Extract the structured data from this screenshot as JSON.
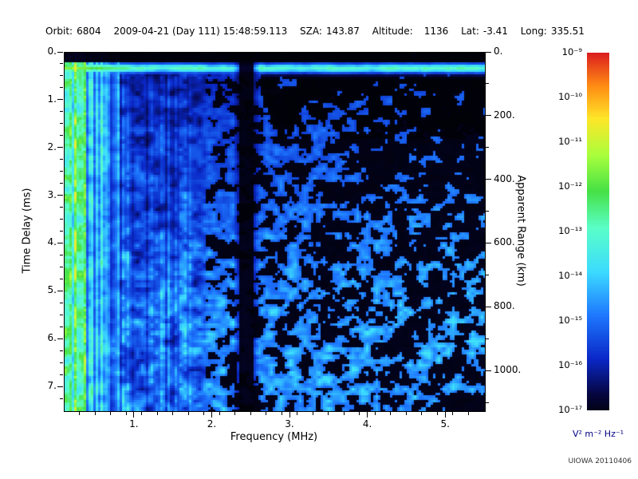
{
  "header": {
    "orbit_label": "Orbit:",
    "orbit_value": "6804",
    "datetime": "2009-04-21 (Day 111) 15:48:59.113",
    "sza_label": "SZA:",
    "sza_value": "143.87",
    "altitude_label": "Altitude:",
    "altitude_value": "1136",
    "lat_label": "Lat:",
    "lat_value": "-3.41",
    "long_label": "Long:",
    "long_value": "335.51"
  },
  "chart_data": {
    "type": "heatmap",
    "title": "",
    "xlabel": "Frequency (MHz)",
    "ylabel": "Time Delay (ms)",
    "y2label": "Apparent Range (km)",
    "xlim": [
      0.1,
      5.5
    ],
    "ylim": [
      0,
      7.5
    ],
    "y2lim": [
      0,
      1125
    ],
    "grid": false,
    "x_ticks": {
      "values": [
        1,
        2,
        3,
        4,
        5
      ],
      "labels": [
        "1.",
        "2.",
        "3.",
        "4.",
        "5."
      ]
    },
    "y_ticks": {
      "values": [
        0,
        1,
        2,
        3,
        4,
        5,
        6,
        7
      ],
      "labels": [
        "0.",
        "1.",
        "2.",
        "3.",
        "4.",
        "5.",
        "6.",
        "7."
      ]
    },
    "y2_ticks": {
      "values": [
        0,
        200,
        400,
        600,
        800,
        1000
      ],
      "labels": [
        "0.",
        "200.",
        "400.",
        "600.",
        "800.",
        "1000."
      ]
    },
    "x_minor_step": 0.2,
    "y_minor_step": 0.25,
    "y2_minor_step": 100,
    "colorbar": {
      "unit": "V² m⁻² Hz⁻¹",
      "max_exponent": -9,
      "min_exponent": -17,
      "tick_labels": [
        "10⁻⁹",
        "10⁻¹⁰",
        "10⁻¹¹",
        "10⁻¹²",
        "10⁻¹³",
        "10⁻¹⁴",
        "10⁻¹⁵",
        "10⁻¹⁶",
        "10⁻¹⁷"
      ],
      "stops": [
        [
          0.0,
          "#010108"
        ],
        [
          0.06,
          "#05053c"
        ],
        [
          0.16,
          "#0a28c8"
        ],
        [
          0.28,
          "#1e78ff"
        ],
        [
          0.4,
          "#3cdcff"
        ],
        [
          0.52,
          "#5affc8"
        ],
        [
          0.62,
          "#46e146"
        ],
        [
          0.72,
          "#aaff3c"
        ],
        [
          0.82,
          "#ffe628"
        ],
        [
          0.91,
          "#ff8c14"
        ],
        [
          1.0,
          "#dc1e1e"
        ]
      ]
    },
    "features": {
      "description": "AIS radar ionogram: diffuse blue noise speckle over black; bright cyan-green horizontal echo band near 0.3 ms delay spanning all frequencies; strong vertical cyan-green striations below ~0.8 MHz at all delays; narrow dark vertical gap near 2.4 MHz; speckle density decreases toward high frequency and small delay (upper right mostly black); black strip above the echo band",
      "surface_band_delay_ms": 0.3,
      "surface_band_halfwidth_ms": 0.09,
      "lowfreq_bright_max_mhz": 0.8,
      "gap_center_mhz": 2.42,
      "gap_halfwidth_mhz": 0.08,
      "top_black_delay_ms": 0.2,
      "noise_seed": 1234
    }
  },
  "footer": {
    "credit": "UIOWA 20110406"
  }
}
